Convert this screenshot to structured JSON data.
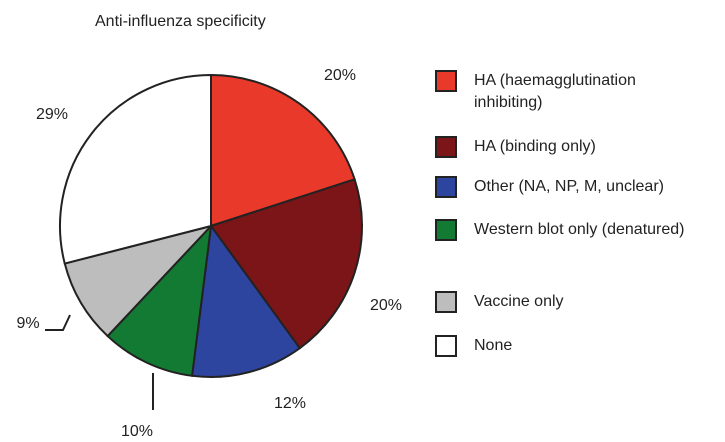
{
  "chart_data": {
    "type": "pie",
    "title": "Anti-influenza specificity",
    "categories": [
      "HA (haemagglutination inhibiting)",
      "HA (binding only)",
      "Other (NA, NP, M, unclear)",
      "Western blot only (denatured)",
      "Vaccine only",
      "None"
    ],
    "values": [
      20,
      20,
      12,
      10,
      9,
      29
    ],
    "value_labels": [
      "20%",
      "20%",
      "12%",
      "10%",
      "9%",
      "29%"
    ],
    "colors": [
      "#e8392a",
      "#7b1517",
      "#2e45a0",
      "#137a34",
      "#bdbdbd",
      "#ffffff"
    ]
  }
}
